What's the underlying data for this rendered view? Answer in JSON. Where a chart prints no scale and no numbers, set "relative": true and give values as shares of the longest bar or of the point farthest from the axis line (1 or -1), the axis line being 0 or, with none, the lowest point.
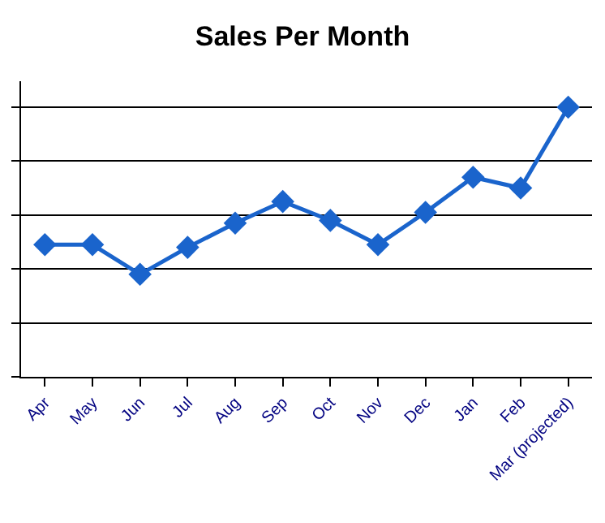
{
  "chart_data": {
    "type": "line",
    "title": "Sales Per Month",
    "relative": true,
    "categories": [
      "Apr",
      "May",
      "Jun",
      "Jul",
      "Aug",
      "Sep",
      "Oct",
      "Nov",
      "Dec",
      "Jan",
      "Feb",
      "Mar (projected)"
    ],
    "series": [
      {
        "color": "#1a64cc",
        "values": [
          0.49,
          0.49,
          0.38,
          0.48,
          0.57,
          0.65,
          0.58,
          0.49,
          0.61,
          0.74,
          0.7,
          1
        ]
      }
    ],
    "grid": "y",
    "marker": "diamond",
    "line_style": "solid",
    "legend": false
  }
}
